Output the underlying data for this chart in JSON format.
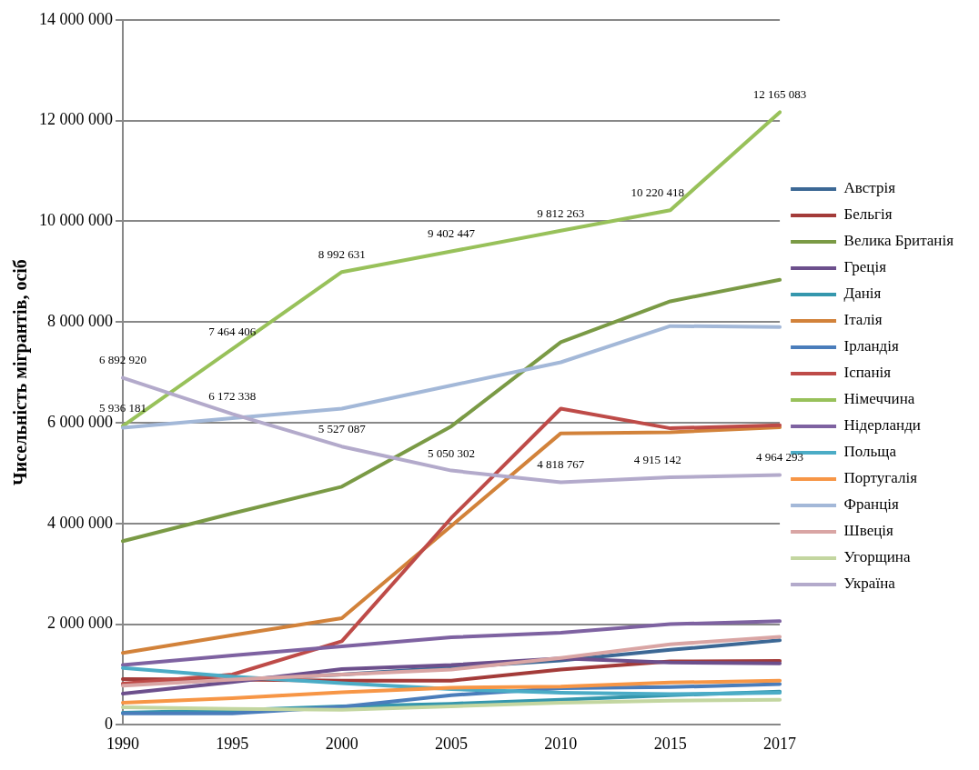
{
  "chart_data": {
    "type": "line",
    "ylabel": "Чисельність мігрантів, осіб",
    "categories": [
      "1990",
      "1995",
      "2000",
      "2005",
      "2010",
      "2015",
      "2017"
    ],
    "ylim": [
      0,
      14000000
    ],
    "yticks": [
      {
        "value": 0,
        "label": "0"
      },
      {
        "value": 2000000,
        "label": "2 000 000"
      },
      {
        "value": 4000000,
        "label": "4 000 000"
      },
      {
        "value": 6000000,
        "label": "6 000 000"
      },
      {
        "value": 8000000,
        "label": "8 000 000"
      },
      {
        "value": 10000000,
        "label": "10 000 000"
      },
      {
        "value": 12000000,
        "label": "12 000 000"
      },
      {
        "value": 14000000,
        "label": "14 000 000"
      }
    ],
    "grid": "y",
    "legend": "right",
    "marker": "none",
    "line_style": "solid",
    "series": [
      {
        "name": "Австрія",
        "color": "#3c6895",
        "values": [
          800000,
          900000,
          1000000,
          1140000,
          1280000,
          1490000,
          1680000
        ]
      },
      {
        "name": "Бельгія",
        "color": "#a33b39",
        "values": [
          910000,
          900000,
          880000,
          880000,
          1100000,
          1260000,
          1270000
        ]
      },
      {
        "name": "Велика Британія",
        "color": "#7a9a45",
        "values": [
          3650000,
          4200000,
          4730000,
          5930000,
          7600000,
          8410000,
          8840000
        ]
      },
      {
        "name": "Греція",
        "color": "#6c4f8c",
        "values": [
          620000,
          850000,
          1110000,
          1190000,
          1320000,
          1240000,
          1220000
        ]
      },
      {
        "name": "Данія",
        "color": "#3597ad",
        "values": [
          240000,
          290000,
          370000,
          420000,
          500000,
          590000,
          660000
        ]
      },
      {
        "name": "Італія",
        "color": "#d2823a",
        "values": [
          1430000,
          1780000,
          2120000,
          3950000,
          5790000,
          5810000,
          5910000
        ]
      },
      {
        "name": "Ірландія",
        "color": "#4a7dbb",
        "values": [
          230000,
          230000,
          360000,
          590000,
          730000,
          750000,
          810000
        ]
      },
      {
        "name": "Іспанія",
        "color": "#be4b48",
        "values": [
          820000,
          1000000,
          1660000,
          4110000,
          6280000,
          5890000,
          5950000
        ]
      },
      {
        "name": "Німеччина",
        "color": "#98c15a",
        "values": [
          5936181,
          7464406,
          8992631,
          9402447,
          9812263,
          10220418,
          12165083
        ],
        "value_labels": [
          "5 936 181",
          "7 464 406",
          "8 992 631",
          "9 402 447",
          "9 812 263",
          "10 220 418",
          "12 165 083"
        ]
      },
      {
        "name": "Нідерланди",
        "color": "#7e62a1",
        "values": [
          1190000,
          1380000,
          1560000,
          1740000,
          1830000,
          2000000,
          2060000
        ]
      },
      {
        "name": "Польща",
        "color": "#4bacc6",
        "values": [
          1130000,
          960000,
          830000,
          710000,
          640000,
          610000,
          640000
        ]
      },
      {
        "name": "Португалія",
        "color": "#f79646",
        "values": [
          440000,
          530000,
          650000,
          740000,
          760000,
          840000,
          880000
        ]
      },
      {
        "name": "Франція",
        "color": "#a3b8d8",
        "values": [
          5900000,
          6090000,
          6280000,
          6740000,
          7200000,
          7920000,
          7900000
        ]
      },
      {
        "name": "Швеція",
        "color": "#d9a5a4",
        "values": [
          780000,
          900000,
          1000000,
          1100000,
          1330000,
          1600000,
          1750000
        ]
      },
      {
        "name": "Угорщина",
        "color": "#c3d6a0",
        "values": [
          350000,
          320000,
          300000,
          370000,
          440000,
          480000,
          500000
        ]
      },
      {
        "name": "Україна",
        "color": "#b3aacb",
        "values": [
          6892920,
          6172338,
          5527087,
          5050302,
          4818767,
          4915142,
          4964293
        ],
        "value_labels": [
          "6 892 920",
          "6 172 338",
          "5 527 087",
          "5 050 302",
          "4 818 767",
          "4 915 142",
          "4 964 293"
        ]
      }
    ]
  }
}
